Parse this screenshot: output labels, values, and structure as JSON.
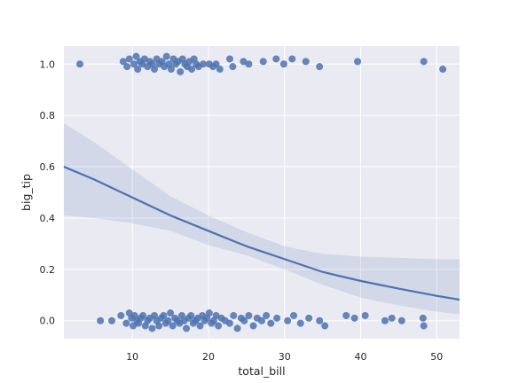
{
  "chart_data": {
    "type": "scatter",
    "title": "",
    "xlabel": "total_bill",
    "ylabel": "big_tip",
    "xlim": [
      1,
      53
    ],
    "ylim": [
      -0.07,
      1.07
    ],
    "xticks": [
      "10",
      "20",
      "30",
      "40",
      "50"
    ],
    "yticks": [
      "0.0",
      "0.2",
      "0.4",
      "0.6",
      "0.8",
      "1.0"
    ],
    "grid": true,
    "colors": {
      "background": "#eaeaf2",
      "grid": "#ffffff",
      "points": "#4c72b0",
      "fit_line": "#4c72b0",
      "ci_band": "#4c72b0"
    },
    "series": [
      {
        "kind": "points",
        "group": "big_tip = 1",
        "x": [
          3.1,
          8.8,
          9.3,
          9.6,
          10.2,
          10.5,
          10.7,
          11.0,
          11.3,
          11.6,
          12.0,
          12.3,
          12.6,
          12.9,
          13.2,
          13.5,
          13.9,
          14.2,
          14.5,
          14.8,
          15.1,
          15.4,
          15.7,
          16.0,
          16.3,
          16.6,
          16.9,
          17.2,
          17.5,
          17.8,
          18.1,
          18.4,
          18.7,
          19.3,
          20.1,
          20.6,
          21.0,
          21.5,
          22.8,
          23.2,
          24.6,
          25.3,
          27.2,
          28.9,
          29.9,
          31.0,
          32.8,
          34.6,
          39.6,
          48.3,
          50.8
        ],
        "y": [
          1.0,
          1.01,
          0.99,
          1.02,
          1.0,
          1.03,
          0.98,
          1.01,
          1.0,
          1.02,
          0.99,
          1.01,
          1.0,
          0.98,
          1.02,
          1.0,
          1.01,
          0.99,
          1.03,
          1.0,
          0.98,
          1.02,
          1.0,
          1.01,
          0.97,
          1.02,
          1.0,
          0.99,
          1.01,
          0.98,
          1.02,
          1.0,
          0.99,
          1.0,
          1.0,
          0.99,
          1.0,
          0.98,
          1.02,
          0.99,
          1.01,
          1.0,
          1.01,
          1.02,
          1.0,
          1.02,
          1.01,
          0.99,
          1.01,
          1.01,
          0.98
        ]
      },
      {
        "kind": "points",
        "group": "big_tip = 0",
        "x": [
          5.8,
          7.3,
          8.5,
          9.2,
          9.6,
          9.9,
          10.1,
          10.3,
          10.6,
          10.8,
          11.1,
          11.4,
          11.7,
          12.0,
          12.3,
          12.6,
          12.9,
          13.2,
          13.5,
          13.8,
          14.1,
          14.4,
          14.7,
          15.0,
          15.3,
          15.6,
          15.9,
          16.2,
          16.5,
          16.8,
          17.1,
          17.4,
          17.7,
          18.0,
          18.3,
          18.6,
          18.9,
          19.2,
          19.5,
          19.8,
          20.1,
          20.4,
          20.7,
          21.0,
          21.3,
          21.7,
          22.2,
          22.8,
          23.3,
          23.8,
          24.3,
          24.7,
          25.3,
          25.9,
          26.4,
          27.0,
          27.6,
          28.2,
          29.0,
          30.4,
          31.2,
          32.1,
          33.2,
          34.6,
          35.3,
          38.1,
          39.2,
          40.6,
          43.2,
          44.1,
          45.4,
          48.2,
          48.3
        ],
        "y": [
          0.0,
          0.0,
          0.02,
          -0.01,
          0.03,
          0.01,
          -0.02,
          0.02,
          0.0,
          -0.01,
          0.01,
          0.02,
          -0.02,
          0.0,
          0.01,
          -0.03,
          0.02,
          0.0,
          -0.02,
          0.01,
          0.02,
          -0.01,
          0.0,
          0.03,
          -0.02,
          0.01,
          0.0,
          -0.01,
          0.02,
          0.0,
          -0.03,
          0.01,
          0.02,
          -0.01,
          0.0,
          0.01,
          -0.02,
          0.02,
          0.0,
          0.01,
          0.03,
          -0.01,
          0.0,
          0.02,
          -0.02,
          0.01,
          0.0,
          -0.01,
          0.02,
          -0.03,
          0.01,
          0.0,
          0.02,
          -0.02,
          0.01,
          0.0,
          0.02,
          -0.01,
          0.01,
          0.0,
          0.02,
          -0.01,
          0.01,
          0.0,
          -0.02,
          0.02,
          0.01,
          0.02,
          0.0,
          0.01,
          0.0,
          0.01,
          -0.02
        ]
      },
      {
        "kind": "fit_line",
        "x": [
          1,
          5,
          10,
          15,
          20,
          25,
          30,
          35,
          40,
          45,
          50,
          53
        ],
        "y": [
          0.6,
          0.55,
          0.48,
          0.41,
          0.35,
          0.29,
          0.24,
          0.19,
          0.155,
          0.125,
          0.097,
          0.082
        ]
      },
      {
        "kind": "ci_band",
        "x": [
          1,
          5,
          10,
          15,
          20,
          25,
          30,
          35,
          40,
          45,
          50,
          53
        ],
        "lower": [
          0.41,
          0.4,
          0.38,
          0.35,
          0.295,
          0.255,
          0.2,
          0.14,
          0.09,
          0.06,
          0.035,
          0.025
        ],
        "upper": [
          0.77,
          0.695,
          0.59,
          0.485,
          0.41,
          0.345,
          0.29,
          0.26,
          0.25,
          0.245,
          0.24,
          0.24
        ]
      }
    ]
  }
}
